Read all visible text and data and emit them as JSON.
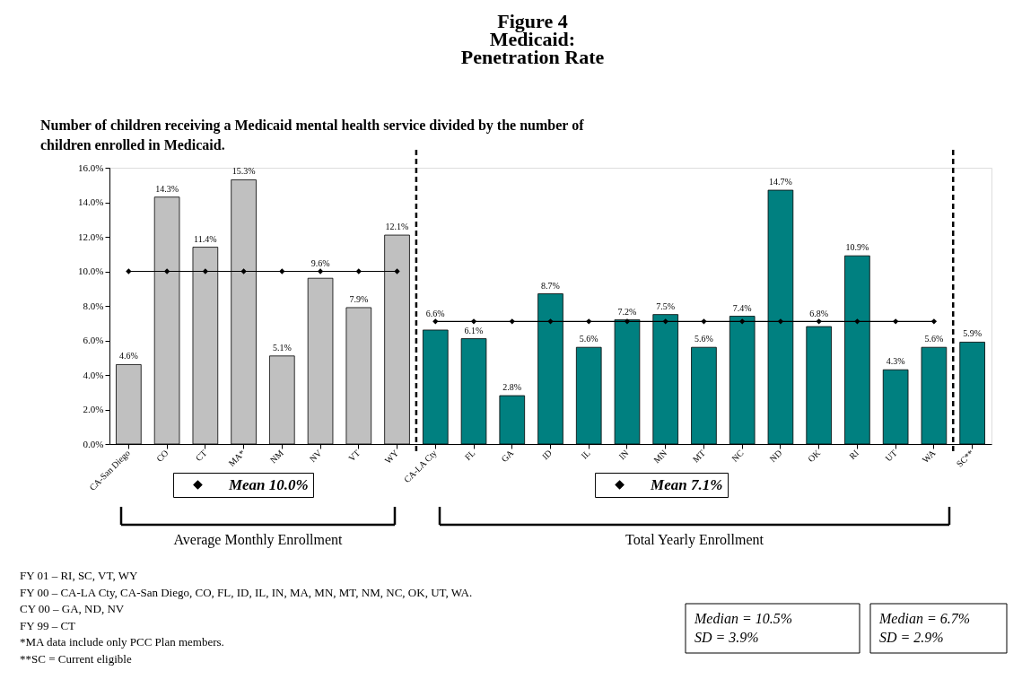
{
  "chart_data": {
    "type": "bar",
    "title": "Figure 4\nMedicaid:\nPenetration Rate",
    "subtitle": "Number of children receiving a Medicaid mental health service divided by the number of\nchildren enrolled in Medicaid.",
    "categories": [
      "CA-San Diego",
      "CO",
      "CT",
      "MA*",
      "NM",
      "NV",
      "VT",
      "WY",
      "CA-LA Cty",
      "FL",
      "GA",
      "ID",
      "IL",
      "IN",
      "MN",
      "MT",
      "NC",
      "ND",
      "OK",
      "RI",
      "UT",
      "WA",
      "SC**"
    ],
    "series": [
      {
        "color": "#c0c0c0",
        "values": [
          4.6,
          14.3,
          11.4,
          15.3,
          5.1,
          9.6,
          7.9,
          12.1,
          null,
          null,
          null,
          null,
          null,
          null,
          null,
          null,
          null,
          null,
          null,
          null,
          null,
          null,
          null
        ],
        "value_labels": [
          "4.6%",
          "14.3%",
          "11.4%",
          "15.3%",
          "5.1%",
          "9.6%",
          "7.9%",
          "12.1%",
          null,
          null,
          null,
          null,
          null,
          null,
          null,
          null,
          null,
          null,
          null,
          null,
          null,
          null,
          null
        ]
      },
      {
        "color": "#008080",
        "values": [
          null,
          null,
          null,
          null,
          null,
          null,
          null,
          null,
          6.6,
          6.1,
          2.8,
          8.7,
          5.6,
          7.2,
          7.5,
          5.6,
          7.4,
          14.7,
          6.8,
          10.9,
          4.3,
          5.6,
          5.9
        ],
        "value_labels": [
          null,
          null,
          null,
          null,
          null,
          null,
          null,
          null,
          "6.6%",
          "6.1%",
          "2.8%",
          "8.7%",
          "5.6%",
          "7.2%",
          "7.5%",
          "5.6%",
          "7.4%",
          "14.7%",
          "6.8%",
          "10.9%",
          "4.3%",
          "5.6%",
          "5.9%"
        ]
      },
      {
        "type": "line",
        "name": "Mean 10.0%",
        "color": "#000000",
        "marker": "diamond",
        "values": [
          10.0,
          10.0,
          10.0,
          10.0,
          10.0,
          10.0,
          10.0,
          10.0,
          null,
          null,
          null,
          null,
          null,
          null,
          null,
          null,
          null,
          null,
          null,
          null,
          null,
          null,
          null
        ]
      },
      {
        "type": "line",
        "name": "Mean 7.1%",
        "color": "#000000",
        "marker": "diamond",
        "values": [
          null,
          null,
          null,
          null,
          null,
          null,
          null,
          null,
          7.1,
          7.1,
          7.1,
          7.1,
          7.1,
          7.1,
          7.1,
          7.1,
          7.1,
          7.1,
          7.1,
          7.1,
          7.1,
          7.1,
          null
        ]
      }
    ],
    "ylim": [
      0,
      16
    ],
    "yticks": [
      {
        "value": 0,
        "label": "0.0%"
      },
      {
        "value": 2,
        "label": "2.0%"
      },
      {
        "value": 4,
        "label": "4.0%"
      },
      {
        "value": 6,
        "label": "6.0%"
      },
      {
        "value": 8,
        "label": "8.0%"
      },
      {
        "value": 10,
        "label": "10.0%"
      },
      {
        "value": 12,
        "label": "12.0%"
      },
      {
        "value": 14,
        "label": "14.0%"
      },
      {
        "value": 16,
        "label": "16.0%"
      }
    ],
    "ref_lines": [
      {
        "axis": "x",
        "value": "WY",
        "line_style": "dashed",
        "color": "#000000"
      },
      {
        "axis": "x",
        "value": "WA",
        "line_style": "dashed",
        "color": "#000000"
      }
    ],
    "annotations": [
      "Average Monthly Enrollment",
      "Total Yearly Enrollment",
      "Median = 10.5%\nSD = 3.9%",
      "Median = 6.7%\nSD = 2.9%",
      "FY 01 – RI, SC, VT, WY",
      "FY 00 – CA-LA Cty, CA-San Diego, CO, FL, ID, IL, IN, MA, MN, MT, NM, NC, OK, UT, WA.",
      "CY 00 – GA, ND, NV",
      "FY 99 – CT",
      "*MA data include only PCC Plan members.",
      "**SC = Current eligible"
    ],
    "legend": "bottom",
    "grid": false
  }
}
